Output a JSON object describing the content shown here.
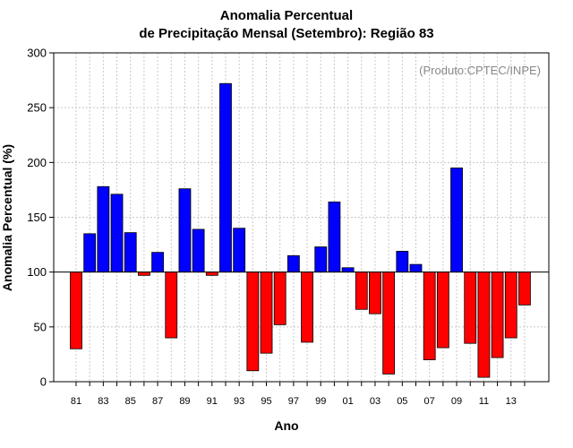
{
  "chart_data": {
    "type": "bar",
    "title": "Anomalia Percentual",
    "subtitle": "de Precipitação Mensal (Setembro): Região 83",
    "credit": "(Produto:CPTEC/INPE)",
    "xlabel": "Ano",
    "ylabel": "Anomalia Percentual (%)",
    "ylim": [
      0,
      300
    ],
    "yticks": [
      0,
      50,
      100,
      150,
      200,
      250,
      300
    ],
    "baseline": 100,
    "grid": true,
    "categories": [
      "81",
      "82",
      "83",
      "84",
      "85",
      "86",
      "87",
      "88",
      "89",
      "90",
      "91",
      "92",
      "93",
      "94",
      "95",
      "96",
      "97",
      "98",
      "99",
      "00",
      "01",
      "02",
      "03",
      "04",
      "05",
      "06",
      "07",
      "08",
      "09",
      "10",
      "11",
      "12",
      "13",
      "14"
    ],
    "xtick_labels": [
      "81",
      "83",
      "85",
      "87",
      "89",
      "91",
      "93",
      "95",
      "97",
      "99",
      "01",
      "03",
      "05",
      "07",
      "09",
      "11",
      "13"
    ],
    "values": [
      30,
      135,
      178,
      171,
      136,
      97,
      118,
      40,
      176,
      139,
      97,
      272,
      140,
      10,
      26,
      52,
      115,
      36,
      123,
      164,
      104,
      66,
      62,
      7,
      119,
      107,
      20,
      31,
      195,
      35,
      4,
      22,
      40,
      70
    ],
    "colors": {
      "above": "#0000ff",
      "below": "#ff0000",
      "gridline": "#c8c8c8",
      "baseline": "#000000"
    }
  }
}
